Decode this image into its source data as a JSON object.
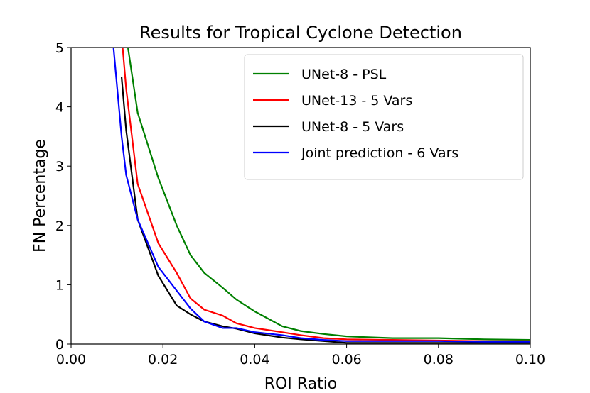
{
  "chart_data": {
    "type": "line",
    "title": "Results for Tropical Cyclone Detection",
    "x_label": "ROI Ratio",
    "y_label": "FN Percentage",
    "x": [
      0.009,
      0.011,
      0.012,
      0.0145,
      0.019,
      0.023,
      0.026,
      0.029,
      0.033,
      0.036,
      0.04,
      0.046,
      0.05,
      0.055,
      0.06,
      0.07,
      0.08,
      0.09,
      0.1
    ],
    "series": [
      {
        "name": "UNet-8 - PSL",
        "color": "#008000",
        "values": [
          null,
          null,
          5.2,
          3.9,
          2.8,
          2.0,
          1.5,
          1.2,
          0.95,
          0.75,
          0.55,
          0.3,
          0.22,
          0.17,
          0.13,
          0.1,
          0.1,
          0.08,
          0.07
        ]
      },
      {
        "name": "UNet-13 - 5 Vars",
        "color": "#ff0000",
        "values": [
          null,
          5.2,
          4.3,
          2.7,
          1.7,
          1.2,
          0.77,
          0.58,
          0.48,
          0.35,
          0.27,
          0.2,
          0.15,
          0.1,
          0.08,
          0.07,
          0.06,
          0.05,
          0.05
        ]
      },
      {
        "name": "UNet-8 - 5 Vars",
        "color": "#000000",
        "values": [
          null,
          4.5,
          3.6,
          2.1,
          1.15,
          0.65,
          0.5,
          0.38,
          0.3,
          0.26,
          0.18,
          0.11,
          0.08,
          0.05,
          0.02,
          0.02,
          0.02,
          0.02,
          0.02
        ]
      },
      {
        "name": "Joint prediction - 6 Vars",
        "color": "#0000ff",
        "values": [
          5.2,
          3.5,
          2.85,
          2.1,
          1.3,
          0.9,
          0.6,
          0.38,
          0.27,
          0.27,
          0.2,
          0.15,
          0.1,
          0.07,
          0.05,
          0.05,
          0.05,
          0.04,
          0.04
        ]
      }
    ],
    "xlim": [
      0,
      0.1
    ],
    "ylim": [
      0,
      5
    ],
    "xticks": [
      {
        "value": 0,
        "label": "0.00"
      },
      {
        "value": 0.02,
        "label": "0.02"
      },
      {
        "value": 0.04,
        "label": "0.04"
      },
      {
        "value": 0.06,
        "label": "0.06"
      },
      {
        "value": 0.08,
        "label": "0.08"
      },
      {
        "value": 0.1,
        "label": "0.10"
      }
    ],
    "yticks": [
      0,
      1,
      2,
      3,
      4,
      5
    ],
    "grid": false,
    "legend": "upper right"
  }
}
